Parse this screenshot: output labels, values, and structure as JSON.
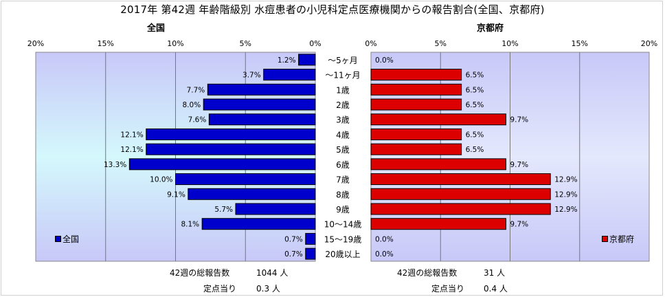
{
  "title": "2017年 第42週 年齢階級別 水痘患者の小児科定点医療機関からの報告割合(全国、京都府)",
  "chart_data": [
    {
      "type": "bar",
      "orientation": "horizontal",
      "title": "全国",
      "categories": [
        "～5ヶ月",
        "～11ヶ月",
        "1歳",
        "2歳",
        "3歳",
        "4歳",
        "5歳",
        "6歳",
        "7歳",
        "8歳",
        "9歳",
        "10～14歳",
        "15～19歳",
        "20歳以上"
      ],
      "series": [
        {
          "name": "全国",
          "values": [
            1.2,
            3.7,
            7.7,
            8.0,
            7.6,
            12.1,
            12.1,
            13.3,
            10.0,
            9.1,
            5.7,
            8.1,
            0.7,
            0.7
          ],
          "labels": [
            "1.2%",
            "3.7%",
            "7.7%",
            "8.0%",
            "7.6%",
            "12.1%",
            "12.1%",
            "13.3%",
            "10.0%",
            "9.1%",
            "5.7%",
            "8.1%",
            "0.7%",
            "0.7%"
          ]
        }
      ],
      "xlim": [
        0,
        20
      ],
      "x_reversed": true,
      "tick_labels": [
        "20%",
        "15%",
        "10%",
        "5%",
        "0%"
      ],
      "color": "#0000cc",
      "legend_position": "bottom-left",
      "grid": true
    },
    {
      "type": "bar",
      "orientation": "horizontal",
      "title": "京都府",
      "categories": [
        "～5ヶ月",
        "～11ヶ月",
        "1歳",
        "2歳",
        "3歳",
        "4歳",
        "5歳",
        "6歳",
        "7歳",
        "8歳",
        "9歳",
        "10～14歳",
        "15～19歳",
        "20歳以上"
      ],
      "series": [
        {
          "name": "京都府",
          "values": [
            0.0,
            6.5,
            6.5,
            6.5,
            9.7,
            6.5,
            6.5,
            9.7,
            12.9,
            12.9,
            12.9,
            9.7,
            0.0,
            0.0
          ],
          "labels": [
            "0.0%",
            "6.5%",
            "6.5%",
            "6.5%",
            "9.7%",
            "6.5%",
            "6.5%",
            "9.7%",
            "12.9%",
            "12.9%",
            "12.9%",
            "9.7%",
            "0.0%",
            "0.0%"
          ]
        }
      ],
      "xlim": [
        0,
        20
      ],
      "x_reversed": false,
      "tick_labels": [
        "0%",
        "5%",
        "10%",
        "15%",
        "20%"
      ],
      "color": "#dd0000",
      "legend_position": "bottom-right",
      "grid": true
    }
  ],
  "footer": {
    "national": {
      "total_label": "42週の総報告数",
      "total_value": "1044 人",
      "per_label": "定点当り",
      "per_value": "0.3 人"
    },
    "kyoto": {
      "total_label": "42週の総報告数",
      "total_value": "31 人",
      "per_label": "定点当り",
      "per_value": "0.4 人"
    }
  }
}
